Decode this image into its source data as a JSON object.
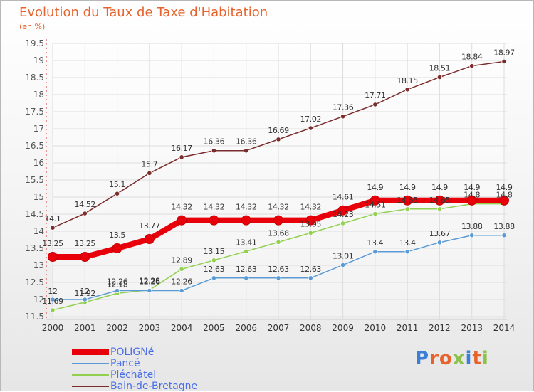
{
  "header": {
    "title": "Evolution du Taux de Taxe d'Habitation",
    "unit": "(en %)"
  },
  "brand": {
    "text": "Proxiti",
    "letter_colors": [
      "#3c7fd6",
      "#e8632c",
      "#e8632c",
      "#8bc34a",
      "#3c7fd6",
      "#e8632c",
      "#8bc34a"
    ]
  },
  "chart_data": {
    "type": "line",
    "x": [
      "2000",
      "2001",
      "2002",
      "2003",
      "2004",
      "2005",
      "2006",
      "2007",
      "2008",
      "2009",
      "2010",
      "2011",
      "2012",
      "2013",
      "2014"
    ],
    "ylim": [
      11.5,
      19.5
    ],
    "yticks": [
      "11.5",
      "12",
      "12.5",
      "13",
      "13.5",
      "14",
      "14.5",
      "15",
      "15.5",
      "16",
      "16.5",
      "17",
      "17.5",
      "18",
      "18.5",
      "19",
      "19.5"
    ],
    "grid": true,
    "legend_position": "bottom-left",
    "series": [
      {
        "name": "POLIGNé",
        "color": "#e8000b",
        "values": [
          13.25,
          13.25,
          13.5,
          13.77,
          14.32,
          14.32,
          14.32,
          14.32,
          14.32,
          14.61,
          14.9,
          14.9,
          14.9,
          14.9,
          14.9
        ],
        "labels": [
          "13.25",
          "13.25",
          "13.5",
          "13.77",
          "14.32",
          "14.32",
          "14.32",
          "14.32",
          "14.32",
          "14.61",
          "14.9",
          "14.9",
          "14.9",
          "14.9",
          "14.9"
        ]
      },
      {
        "name": "Pancé",
        "color": "#5b9bd5",
        "values": [
          12.0,
          12.0,
          12.26,
          12.26,
          12.26,
          12.63,
          12.63,
          12.63,
          12.63,
          13.01,
          13.4,
          13.4,
          13.67,
          13.88,
          13.88
        ],
        "labels": [
          "12",
          "12",
          "12.26",
          "12.26",
          "12.26",
          "12.63",
          "12.63",
          "12.63",
          "12.63",
          "13.01",
          "13.4",
          "13.4",
          "13.67",
          "13.88",
          "13.88"
        ]
      },
      {
        "name": "Pléchâtel",
        "color": "#92d050",
        "values": [
          11.69,
          11.92,
          12.18,
          12.28,
          12.89,
          13.15,
          13.41,
          13.68,
          13.95,
          14.23,
          14.51,
          14.65,
          14.65,
          14.8,
          14.8
        ],
        "labels": [
          "11.69",
          "11.92",
          "12.18",
          "12.28",
          "12.89",
          "13.15",
          "13.41",
          "13.68",
          "13.95",
          "14.23",
          "14.51",
          "14.65",
          "14.65",
          "14.8",
          "14.8"
        ]
      },
      {
        "name": "Bain-de-Bretagne",
        "color": "#7b2c2c",
        "values": [
          14.1,
          14.52,
          15.1,
          15.7,
          16.17,
          16.36,
          16.36,
          16.69,
          17.02,
          17.36,
          17.71,
          18.15,
          18.51,
          18.84,
          18.97
        ],
        "labels": [
          "14.1",
          "14.52",
          "15.1",
          "15.7",
          "16.17",
          "16.36",
          "16.36",
          "16.69",
          "17.02",
          "17.36",
          "17.71",
          "18.15",
          "18.51",
          "18.84",
          "18.97"
        ]
      }
    ]
  }
}
